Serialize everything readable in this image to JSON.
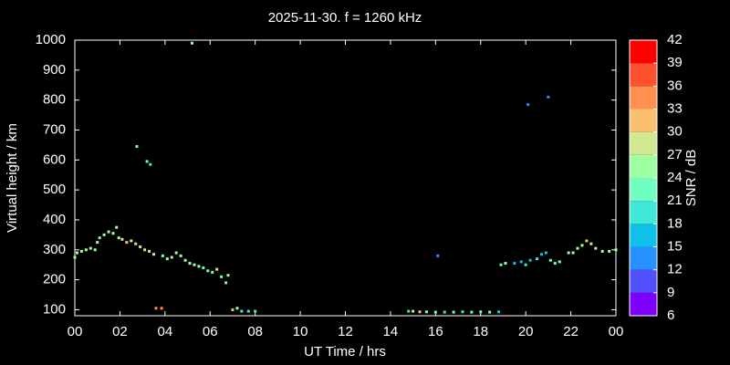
{
  "chart_data": {
    "type": "scatter",
    "title": "2025-11-30. f = 1260 kHz",
    "x_label": "UT Time / hrs",
    "y_label": "Virtual height / km",
    "xlim": [
      0,
      24
    ],
    "xticks": [
      {
        "value": 0,
        "label": "00"
      },
      {
        "value": 2,
        "label": "02"
      },
      {
        "value": 4,
        "label": "04"
      },
      {
        "value": 6,
        "label": "06"
      },
      {
        "value": 8,
        "label": "08"
      },
      10,
      12,
      14,
      16,
      18,
      20,
      22,
      {
        "value": 24,
        "label": "00"
      }
    ],
    "ylim": [
      80,
      1000
    ],
    "yticks": [
      100,
      200,
      300,
      400,
      500,
      600,
      700,
      800,
      900,
      1000
    ],
    "series": [
      {
        "x": [
          0.0,
          0.1,
          0.3,
          0.5,
          0.7,
          0.9,
          1.0,
          1.1,
          1.3,
          1.5,
          1.7,
          1.85,
          1.95,
          2.1,
          2.3,
          2.5,
          2.7,
          2.9,
          3.1,
          3.3,
          3.5,
          3.9,
          4.1,
          4.3,
          4.5,
          4.7,
          4.9,
          5.1,
          5.3,
          5.5,
          5.7,
          5.9,
          6.1,
          6.3,
          6.5,
          6.7,
          6.8,
          2.75,
          3.2,
          3.35,
          5.2,
          3.6,
          3.85,
          7.0,
          7.2,
          7.4,
          7.7,
          8.0,
          14.8,
          15.0,
          15.3,
          15.6,
          16.0,
          16.4,
          16.8,
          17.2,
          17.6,
          18.0,
          18.4,
          18.8,
          16.1,
          20.1,
          21.0,
          18.9,
          19.1,
          19.5,
          19.8,
          20.0,
          20.2,
          20.5,
          20.7,
          20.9,
          21.1,
          21.3,
          21.5,
          21.9,
          22.1,
          22.3,
          22.5,
          22.7,
          22.9,
          23.1,
          23.4,
          23.7,
          24.0
        ],
        "values": [
          275,
          290,
          295,
          300,
          305,
          300,
          325,
          340,
          350,
          360,
          355,
          375,
          340,
          335,
          325,
          330,
          320,
          310,
          300,
          295,
          285,
          280,
          270,
          275,
          290,
          280,
          265,
          255,
          250,
          245,
          240,
          230,
          225,
          235,
          210,
          190,
          215,
          645,
          595,
          585,
          990,
          105,
          105,
          100,
          105,
          95,
          95,
          95,
          95,
          95,
          93,
          93,
          92,
          92,
          92,
          93,
          92,
          93,
          92,
          93,
          280,
          785,
          810,
          250,
          255,
          255,
          260,
          250,
          265,
          270,
          285,
          290,
          265,
          255,
          260,
          290,
          290,
          305,
          315,
          330,
          320,
          305,
          295,
          295,
          300
        ],
        "snr": [
          25,
          25,
          25,
          25,
          25,
          25,
          28,
          22,
          25,
          25,
          25,
          25,
          25,
          28,
          31,
          28,
          28,
          28,
          28,
          28,
          28,
          22,
          25,
          25,
          25,
          25,
          25,
          25,
          25,
          25,
          22,
          22,
          22,
          28,
          22,
          22,
          25,
          22,
          22,
          19,
          25,
          34,
          34,
          31,
          25,
          19,
          19,
          19,
          19,
          28,
          31,
          22,
          22,
          19,
          22,
          19,
          22,
          22,
          22,
          16,
          13,
          13,
          13,
          22,
          25,
          16,
          16,
          19,
          16,
          19,
          16,
          16,
          22,
          22,
          22,
          25,
          25,
          25,
          25,
          31,
          28,
          28,
          25,
          25,
          25
        ]
      }
    ],
    "colorbar": {
      "label": "SNR / dB",
      "ticks": [
        6,
        9,
        12,
        15,
        18,
        21,
        24,
        27,
        30,
        33,
        36,
        39,
        42
      ],
      "colors": [
        "#8000ff",
        "#5050ff",
        "#2890ff",
        "#10c0e8",
        "#40e8d8",
        "#70ffc0",
        "#a0ffa0",
        "#d0e890",
        "#f8c070",
        "#ff9050",
        "#ff5030",
        "#ff0000"
      ]
    }
  }
}
